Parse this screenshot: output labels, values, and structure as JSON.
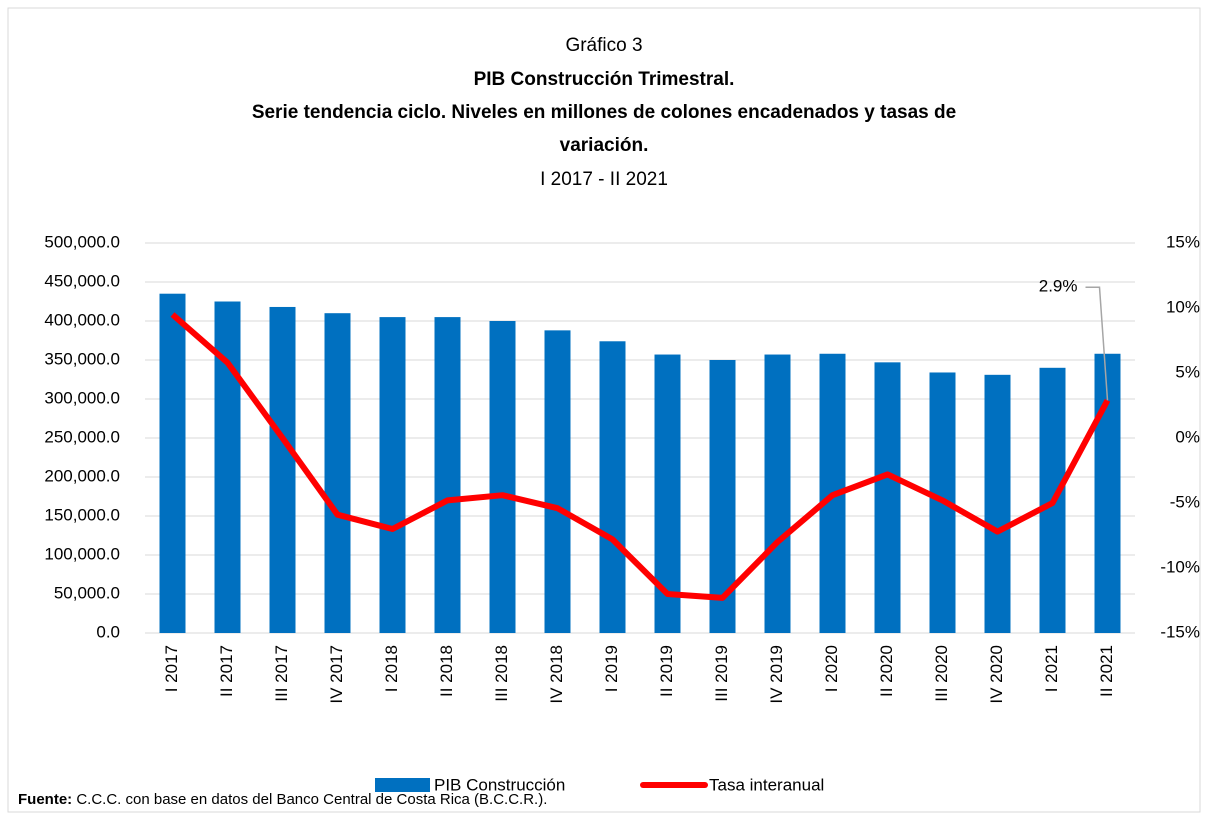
{
  "chart_data": {
    "type": "bar_line",
    "title": "Gráfico 3",
    "subtitle": [
      "PIB Construcción Trimestral.",
      "Serie tendencia ciclo. Niveles en millones de colones encadenados y tasas de",
      "variación."
    ],
    "period": "I 2017 - II 2021",
    "categories": [
      "I 2017",
      "II 2017",
      "III 2017",
      "IV 2017",
      "I 2018",
      "II 2018",
      "III 2018",
      "IV 2018",
      "I 2019",
      "II 2019",
      "III 2019",
      "IV 2019",
      "I 2020",
      "II 2020",
      "III 2020",
      "IV 2020",
      "I 2021",
      "II 2021"
    ],
    "series": [
      {
        "name": "PIB Construcción",
        "color": "#0070c0",
        "type": "bar",
        "values": [
          435000,
          425000,
          418000,
          410000,
          405000,
          405000,
          400000,
          388000,
          374000,
          357000,
          350000,
          357000,
          358000,
          347000,
          334000,
          331000,
          340000,
          358000
        ]
      },
      {
        "name": "Tasa interanual",
        "color": "#ff0000",
        "type": "line",
        "axis": "y2",
        "values": [
          9.5,
          5.8,
          0,
          -5.9,
          -7.0,
          -4.8,
          -4.4,
          -5.4,
          -7.8,
          -12.0,
          -12.3,
          -8.0,
          -4.4,
          -2.8,
          -4.8,
          -7.2,
          -5.0,
          2.9
        ],
        "value_labels": [
          null,
          null,
          null,
          null,
          null,
          null,
          null,
          null,
          null,
          null,
          null,
          null,
          null,
          null,
          null,
          null,
          null,
          "2.9%"
        ]
      }
    ],
    "ylim": [
      0,
      500000
    ],
    "yticks": [
      {
        "value": 0,
        "label": "0.0"
      },
      {
        "value": 50000,
        "label": "50,000.0"
      },
      {
        "value": 100000,
        "label": "100,000.0"
      },
      {
        "value": 150000,
        "label": "150,000.0"
      },
      {
        "value": 200000,
        "label": "200,000.0"
      },
      {
        "value": 250000,
        "label": "250,000.0"
      },
      {
        "value": 300000,
        "label": "300,000.0"
      },
      {
        "value": 350000,
        "label": "350,000.0"
      },
      {
        "value": 400000,
        "label": "400,000.0"
      },
      {
        "value": 450000,
        "label": "450,000.0"
      },
      {
        "value": 500000,
        "label": "500,000.0"
      }
    ],
    "y2lim": [
      -15,
      15
    ],
    "y2ticks": [
      {
        "value": -15,
        "label": "-15%"
      },
      {
        "value": -10,
        "label": "-10%"
      },
      {
        "value": -5,
        "label": "-5%"
      },
      {
        "value": 0,
        "label": "0%"
      },
      {
        "value": 5,
        "label": "5%"
      },
      {
        "value": 10,
        "label": "10%"
      },
      {
        "value": 15,
        "label": "15%"
      }
    ],
    "grid": true,
    "legend": "bottom",
    "source_label": "Fuente:",
    "source": "C.C.C. con base en datos del Banco Central de Costa Rica (B.C.C.R.)."
  }
}
